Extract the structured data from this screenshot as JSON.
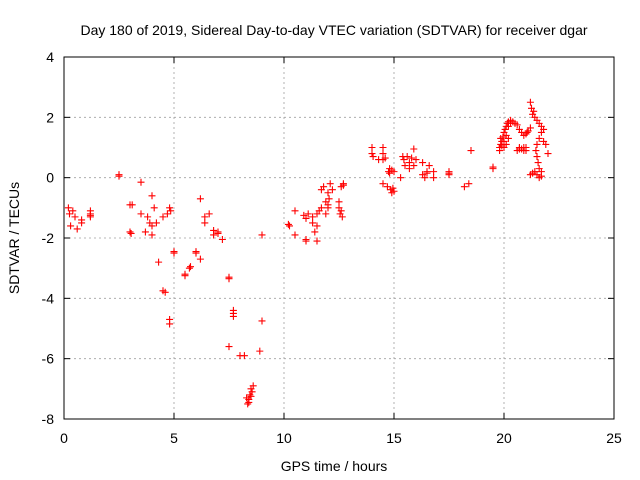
{
  "chart_data": {
    "type": "scatter",
    "title": "Day 180 of 2019, Sidereal Day-to-day VTEC variation (SDTVAR) for receiver dgar",
    "xlabel": "GPS time / hours",
    "ylabel": "SDTVAR / TECUs",
    "xlim": [
      0,
      25
    ],
    "ylim": [
      -8,
      4
    ],
    "xticks": [
      0,
      5,
      10,
      15,
      20,
      25
    ],
    "yticks": [
      -8,
      -6,
      -4,
      -2,
      0,
      2,
      4
    ],
    "grid": true,
    "marker": "plus",
    "color": "#ff0000",
    "series": [
      {
        "name": "SDTVAR",
        "points": [
          [
            0.2,
            -1.0
          ],
          [
            0.25,
            -1.2
          ],
          [
            0.3,
            -1.6
          ],
          [
            0.4,
            -1.1
          ],
          [
            0.5,
            -1.3
          ],
          [
            0.6,
            -1.7
          ],
          [
            0.8,
            -1.4
          ],
          [
            0.8,
            -1.5
          ],
          [
            1.2,
            -1.1
          ],
          [
            1.2,
            -1.2
          ],
          [
            1.2,
            -1.3
          ],
          [
            1.2,
            -1.25
          ],
          [
            2.5,
            0.1
          ],
          [
            2.5,
            0.05
          ],
          [
            3.0,
            -0.9
          ],
          [
            3.0,
            -1.8
          ],
          [
            3.05,
            -1.85
          ],
          [
            3.1,
            -0.9
          ],
          [
            3.5,
            -0.15
          ],
          [
            3.5,
            -1.2
          ],
          [
            3.7,
            -1.8
          ],
          [
            3.8,
            -1.3
          ],
          [
            3.9,
            -1.5
          ],
          [
            4.0,
            -1.6
          ],
          [
            4.0,
            -0.6
          ],
          [
            4.0,
            -1.9
          ],
          [
            4.1,
            -1.0
          ],
          [
            4.2,
            -1.5
          ],
          [
            4.3,
            -2.8
          ],
          [
            4.5,
            -1.3
          ],
          [
            4.5,
            -3.75
          ],
          [
            4.6,
            -3.8
          ],
          [
            4.7,
            -1.2
          ],
          [
            4.8,
            -4.7
          ],
          [
            4.8,
            -4.85
          ],
          [
            4.8,
            -1.0
          ],
          [
            4.85,
            -1.1
          ],
          [
            5.0,
            -2.5
          ],
          [
            5.0,
            -2.45
          ],
          [
            5.5,
            -3.2
          ],
          [
            5.5,
            -3.25
          ],
          [
            5.7,
            -3.0
          ],
          [
            5.75,
            -2.95
          ],
          [
            6.0,
            -2.45
          ],
          [
            6.0,
            -2.5
          ],
          [
            6.2,
            -2.7
          ],
          [
            6.2,
            -0.7
          ],
          [
            6.4,
            -1.5
          ],
          [
            6.4,
            -1.3
          ],
          [
            6.6,
            -1.2
          ],
          [
            6.8,
            -1.75
          ],
          [
            6.8,
            -1.9
          ],
          [
            7.0,
            -1.85
          ],
          [
            7.0,
            -1.8
          ],
          [
            7.2,
            -2.05
          ],
          [
            7.5,
            -3.35
          ],
          [
            7.5,
            -3.3
          ],
          [
            7.7,
            -4.4
          ],
          [
            7.7,
            -4.5
          ],
          [
            7.7,
            -4.6
          ],
          [
            7.5,
            -5.6
          ],
          [
            8.0,
            -5.9
          ],
          [
            8.2,
            -5.9
          ],
          [
            8.3,
            -7.3
          ],
          [
            8.35,
            -7.5
          ],
          [
            8.4,
            -7.35
          ],
          [
            8.45,
            -7.2
          ],
          [
            8.5,
            -7.0
          ],
          [
            8.55,
            -7.1
          ],
          [
            8.6,
            -6.9
          ],
          [
            8.4,
            -7.45
          ],
          [
            8.5,
            -7.25
          ],
          [
            8.9,
            -5.75
          ],
          [
            9.0,
            -4.75
          ],
          [
            9.0,
            -1.9
          ],
          [
            10.2,
            -1.55
          ],
          [
            10.25,
            -1.6
          ],
          [
            10.5,
            -1.1
          ],
          [
            10.5,
            -1.9
          ],
          [
            10.9,
            -1.25
          ],
          [
            11.0,
            -2.1
          ],
          [
            11.0,
            -1.35
          ],
          [
            11.0,
            -2.05
          ],
          [
            11.1,
            -1.2
          ],
          [
            11.3,
            -1.5
          ],
          [
            11.3,
            -1.3
          ],
          [
            11.4,
            -1.8
          ],
          [
            11.5,
            -1.2
          ],
          [
            11.5,
            -1.6
          ],
          [
            11.5,
            -2.1
          ],
          [
            11.6,
            -1.1
          ],
          [
            11.7,
            -0.4
          ],
          [
            11.7,
            -1.0
          ],
          [
            11.8,
            -0.3
          ],
          [
            11.9,
            -0.8
          ],
          [
            11.9,
            -1.2
          ],
          [
            12.0,
            -0.5
          ],
          [
            12.0,
            -0.9
          ],
          [
            12.0,
            -1.0
          ],
          [
            12.05,
            -0.7
          ],
          [
            12.1,
            -0.2
          ],
          [
            12.2,
            -0.4
          ],
          [
            12.5,
            -0.8
          ],
          [
            12.5,
            -1.0
          ],
          [
            12.55,
            -1.2
          ],
          [
            12.6,
            -1.1
          ],
          [
            12.6,
            -0.3
          ],
          [
            12.65,
            -1.3
          ],
          [
            12.7,
            -0.2
          ],
          [
            12.7,
            -0.25
          ],
          [
            14.0,
            1.0
          ],
          [
            14.0,
            0.8
          ],
          [
            14.05,
            0.7
          ],
          [
            14.3,
            0.6
          ],
          [
            14.5,
            0.8
          ],
          [
            14.5,
            1.0
          ],
          [
            14.5,
            0.6
          ],
          [
            14.6,
            0.65
          ],
          [
            14.5,
            -0.2
          ],
          [
            14.7,
            -0.3
          ],
          [
            14.75,
            0.2
          ],
          [
            14.8,
            0.3
          ],
          [
            14.8,
            0.15
          ],
          [
            14.85,
            -0.4
          ],
          [
            14.9,
            -0.5
          ],
          [
            14.9,
            0.25
          ],
          [
            14.95,
            -0.35
          ],
          [
            15.0,
            0.2
          ],
          [
            15.0,
            -0.45
          ],
          [
            15.3,
            0.0
          ],
          [
            15.4,
            0.7
          ],
          [
            15.45,
            0.6
          ],
          [
            15.5,
            0.4
          ],
          [
            15.6,
            0.7
          ],
          [
            15.7,
            0.3
          ],
          [
            15.7,
            0.5
          ],
          [
            15.8,
            0.65
          ],
          [
            15.9,
            0.95
          ],
          [
            15.9,
            0.4
          ],
          [
            16.0,
            0.6
          ],
          [
            16.3,
            0.1
          ],
          [
            16.3,
            0.5
          ],
          [
            16.4,
            0.0
          ],
          [
            16.5,
            0.2
          ],
          [
            16.5,
            0.15
          ],
          [
            16.6,
            0.4
          ],
          [
            16.8,
            0.0
          ],
          [
            16.8,
            0.2
          ],
          [
            17.5,
            0.1
          ],
          [
            17.5,
            0.2
          ],
          [
            17.5,
            0.15
          ],
          [
            18.2,
            -0.3
          ],
          [
            18.4,
            -0.2
          ],
          [
            18.5,
            0.9
          ],
          [
            19.5,
            0.35
          ],
          [
            19.5,
            0.3
          ],
          [
            19.8,
            1.0
          ],
          [
            19.85,
            1.1
          ],
          [
            19.9,
            1.2
          ],
          [
            19.95,
            1.35
          ],
          [
            20.0,
            1.5
          ],
          [
            20.05,
            1.6
          ],
          [
            20.1,
            1.7
          ],
          [
            20.15,
            1.8
          ],
          [
            20.2,
            1.85
          ],
          [
            20.3,
            1.9
          ],
          [
            20.4,
            1.85
          ],
          [
            20.5,
            1.8
          ],
          [
            20.6,
            1.75
          ],
          [
            20.7,
            1.6
          ],
          [
            20.8,
            1.5
          ],
          [
            20.9,
            1.4
          ],
          [
            21.0,
            1.45
          ],
          [
            21.05,
            1.5
          ],
          [
            21.1,
            1.55
          ],
          [
            21.2,
            1.65
          ],
          [
            21.3,
            2.1
          ],
          [
            21.35,
            2.2
          ],
          [
            21.2,
            2.5
          ],
          [
            21.25,
            2.3
          ],
          [
            21.4,
            2.0
          ],
          [
            21.5,
            1.9
          ],
          [
            21.6,
            1.8
          ],
          [
            21.7,
            1.7
          ],
          [
            21.8,
            1.6
          ],
          [
            20.0,
            1.2
          ],
          [
            20.1,
            1.4
          ],
          [
            20.2,
            1.7
          ],
          [
            20.3,
            1.8
          ],
          [
            20.1,
            1.1
          ],
          [
            20.2,
            1.3
          ],
          [
            20.0,
            1.0
          ],
          [
            19.9,
            1.05
          ],
          [
            19.8,
            0.9
          ],
          [
            19.85,
            1.3
          ],
          [
            20.6,
            0.9
          ],
          [
            20.7,
            1.0
          ],
          [
            20.8,
            0.95
          ],
          [
            20.9,
            0.9
          ],
          [
            21.0,
            1.0
          ],
          [
            21.0,
            0.9
          ],
          [
            20.7,
            0.95
          ],
          [
            20.9,
            1.0
          ],
          [
            21.2,
            0.1
          ],
          [
            21.3,
            0.15
          ],
          [
            21.4,
            0.2
          ],
          [
            21.5,
            0.1
          ],
          [
            21.6,
            0.3
          ],
          [
            21.55,
            0.5
          ],
          [
            21.5,
            0.7
          ],
          [
            21.45,
            0.9
          ],
          [
            21.5,
            1.1
          ],
          [
            21.6,
            1.3
          ],
          [
            21.7,
            1.5
          ],
          [
            21.8,
            1.2
          ],
          [
            21.9,
            1.1
          ],
          [
            22.0,
            0.8
          ],
          [
            21.6,
            0.0
          ],
          [
            21.7,
            0.2
          ],
          [
            21.7,
            0.05
          ]
        ]
      }
    ]
  }
}
